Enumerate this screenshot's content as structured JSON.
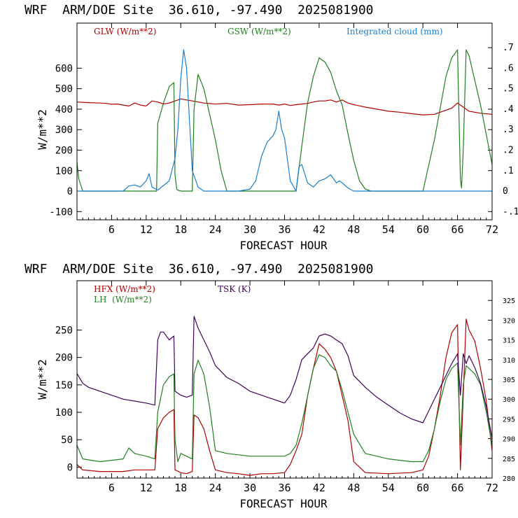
{
  "panels": [
    {
      "title": "WRF  ARM/DOE Site  36.610, -97.490  2025081900",
      "xlabel": "FORECAST HOUR",
      "ylabel": "W/m**2",
      "legend": [
        {
          "label": "GLW (W/m**2)",
          "color": "#b00000"
        },
        {
          "label": "GSW (W/m**2)",
          "color": "#208020"
        },
        {
          "label": "Integrated cloud (mm)",
          "color": "#1a7fd0"
        }
      ]
    },
    {
      "title": "WRF  ARM/DOE Site  36.610, -97.490  2025081900",
      "xlabel": "FORECAST HOUR",
      "ylabel": "W/m**2",
      "legend": [
        {
          "label": "HFX (W/m**2)",
          "color": "#b00000"
        },
        {
          "label": "LH  (W/m**2)",
          "color": "#208020"
        },
        {
          "label": "TSK (K)",
          "color": "#400060"
        }
      ]
    }
  ],
  "chart_data": [
    {
      "type": "line",
      "title": "WRF  ARM/DOE Site  36.610, -97.490  2025081900",
      "xlabel": "FORECAST HOUR",
      "ylabel": "W/m**2",
      "xlim": [
        0,
        72
      ],
      "ylim": [
        -140,
        820
      ],
      "y2lim": [
        -0.14,
        0.82
      ],
      "x_ticks": [
        6,
        12,
        18,
        24,
        30,
        36,
        42,
        48,
        54,
        60,
        66,
        72
      ],
      "y_ticks": [
        -100,
        0,
        100,
        200,
        300,
        400,
        500,
        600
      ],
      "y2_ticks": [
        -0.1,
        0,
        0.1,
        0.2,
        0.3,
        0.4,
        0.5,
        0.6,
        0.7
      ],
      "y2_tick_labels": [
        "-.1",
        "0",
        ".1",
        ".2",
        ".3",
        ".4",
        ".5",
        ".6",
        ".7"
      ],
      "legend_position": "top",
      "grid": false,
      "series": [
        {
          "name": "GLW (W/m**2)",
          "axis": "left",
          "color": "#b00000",
          "x": [
            0,
            2,
            4,
            5,
            6,
            7,
            8,
            9,
            10,
            11,
            12,
            13,
            14,
            15,
            16,
            17,
            18,
            19,
            20,
            21,
            22,
            24,
            26,
            28,
            30,
            32,
            34,
            35,
            36,
            37,
            38,
            39,
            40,
            41,
            42,
            43,
            44,
            45,
            46,
            47,
            48,
            50,
            52,
            54,
            56,
            58,
            60,
            62,
            64,
            65,
            66,
            67,
            68,
            70,
            72
          ],
          "y": [
            435,
            432,
            430,
            428,
            424,
            425,
            420,
            415,
            430,
            420,
            415,
            440,
            435,
            425,
            430,
            440,
            450,
            445,
            440,
            435,
            430,
            425,
            428,
            420,
            422,
            425,
            425,
            420,
            425,
            418,
            422,
            425,
            428,
            435,
            440,
            440,
            445,
            435,
            445,
            430,
            422,
            410,
            400,
            390,
            385,
            378,
            372,
            375,
            395,
            405,
            430,
            410,
            390,
            380,
            375
          ]
        },
        {
          "name": "GSW (W/m**2)",
          "axis": "left",
          "color": "#208020",
          "x": [
            0,
            0.3,
            1,
            13.8,
            14,
            15,
            16,
            16.8,
            17,
            17.3,
            17.5,
            18,
            19,
            20,
            20.3,
            21,
            22,
            24,
            25,
            26,
            38,
            39,
            40,
            41,
            42,
            43,
            44,
            45,
            46,
            47,
            48,
            49,
            50,
            51,
            60,
            62,
            64,
            65,
            66,
            66.5,
            66.7,
            67,
            67.5,
            68,
            70,
            72
          ],
          "y": [
            140,
            60,
            0,
            0,
            330,
            430,
            510,
            530,
            80,
            10,
            5,
            0,
            0,
            0,
            400,
            570,
            500,
            250,
            100,
            0,
            0,
            220,
            430,
            560,
            650,
            630,
            580,
            490,
            420,
            280,
            150,
            50,
            10,
            0,
            0,
            250,
            560,
            650,
            690,
            60,
            15,
            200,
            690,
            660,
            420,
            130
          ]
        },
        {
          "name": "Integrated cloud (mm)",
          "axis": "right",
          "color": "#1a7fd0",
          "x": [
            0,
            8,
            9,
            10,
            11,
            12,
            12.5,
            13,
            14,
            16,
            17,
            17.5,
            18,
            18.5,
            19,
            19.5,
            20,
            21,
            22,
            28,
            29,
            30,
            31,
            32,
            33,
            34,
            34.5,
            35,
            35.5,
            36,
            37,
            38,
            38.5,
            39,
            40,
            41,
            42,
            43,
            44,
            45,
            45.5,
            46,
            47,
            48,
            51,
            72
          ],
          "y": [
            0,
            0,
            0.025,
            0.03,
            0.02,
            0.05,
            0.085,
            0.02,
            0.005,
            0.05,
            0.16,
            0.3,
            0.55,
            0.69,
            0.6,
            0.35,
            0.1,
            0.02,
            0,
            0,
            0.005,
            0.01,
            0.05,
            0.17,
            0.24,
            0.27,
            0.3,
            0.39,
            0.3,
            0.26,
            0.05,
            0,
            0.12,
            0.13,
            0.04,
            0.02,
            0.05,
            0.06,
            0.08,
            0.04,
            0.05,
            0.04,
            0.015,
            0,
            0,
            0
          ]
        }
      ]
    },
    {
      "type": "line",
      "title": "WRF  ARM/DOE Site  36.610, -97.490  2025081900",
      "xlabel": "FORECAST HOUR",
      "ylabel": "W/m**2",
      "xlim": [
        0,
        72
      ],
      "ylim": [
        -20,
        340
      ],
      "y2lim": [
        280,
        330
      ],
      "x_ticks": [
        6,
        12,
        18,
        24,
        30,
        36,
        42,
        48,
        54,
        60,
        66,
        72
      ],
      "y_ticks": [
        0,
        50,
        100,
        150,
        200,
        250
      ],
      "y2_ticks": [
        280,
        285,
        290,
        295,
        300,
        305,
        310,
        315,
        320,
        325
      ],
      "legend_position": "top-left",
      "grid": false,
      "series": [
        {
          "name": "HFX (W/m**2)",
          "axis": "left",
          "color": "#b00000",
          "x": [
            0,
            1,
            4,
            6,
            8,
            10,
            12,
            13.5,
            14,
            15,
            16,
            16.8,
            17,
            18,
            19,
            20,
            20.3,
            21,
            22,
            23,
            24,
            26,
            28,
            30,
            32,
            34,
            36,
            37,
            38,
            39,
            40,
            41,
            42,
            43,
            44,
            45,
            46,
            47,
            48,
            50,
            54,
            58,
            60,
            61,
            62,
            63,
            64,
            65,
            66,
            66.5,
            67,
            67.5,
            68,
            69,
            70,
            71,
            72
          ],
          "y": [
            5,
            -5,
            -8,
            -8,
            -8,
            -5,
            -5,
            -5,
            70,
            90,
            100,
            105,
            -5,
            -10,
            -12,
            -8,
            95,
            90,
            70,
            30,
            -5,
            -10,
            -12,
            -15,
            -12,
            -12,
            -10,
            5,
            30,
            60,
            130,
            180,
            225,
            215,
            200,
            175,
            130,
            85,
            10,
            -10,
            -12,
            -10,
            -5,
            20,
            70,
            130,
            200,
            245,
            260,
            -5,
            130,
            270,
            250,
            230,
            180,
            120,
            30
          ]
        },
        {
          "name": "LH  (W/m**2)",
          "axis": "left",
          "color": "#208020",
          "x": [
            0,
            1,
            4,
            8,
            9,
            10,
            12,
            13.5,
            14,
            15,
            16,
            16.8,
            17,
            17.5,
            18,
            19,
            20,
            20.3,
            21,
            22,
            23,
            24,
            26,
            30,
            34,
            36,
            37,
            38,
            39,
            40,
            41,
            42,
            43,
            44,
            45,
            46,
            47,
            48,
            50,
            54,
            58,
            60,
            61,
            62,
            63,
            64,
            65,
            66,
            66.5,
            67,
            67.5,
            68,
            69,
            70,
            71,
            72
          ],
          "y": [
            40,
            15,
            10,
            15,
            35,
            25,
            20,
            15,
            100,
            150,
            165,
            170,
            50,
            10,
            25,
            20,
            15,
            170,
            195,
            170,
            110,
            30,
            25,
            20,
            20,
            20,
            25,
            40,
            80,
            130,
            180,
            205,
            200,
            185,
            175,
            140,
            100,
            60,
            25,
            15,
            10,
            10,
            30,
            70,
            120,
            160,
            180,
            190,
            40,
            150,
            185,
            180,
            170,
            150,
            100,
            40
          ]
        },
        {
          "name": "TSK (K)",
          "axis": "right",
          "color": "#400060",
          "x": [
            0,
            1,
            2,
            4,
            6,
            8,
            10,
            12,
            13.5,
            14,
            14.5,
            15,
            16,
            16.8,
            17,
            18,
            19,
            20,
            20.3,
            21,
            22,
            23,
            24,
            26,
            28,
            30,
            32,
            34,
            35,
            36,
            37,
            38,
            39,
            40,
            41,
            42,
            43,
            44,
            45,
            46,
            47,
            48,
            50,
            52,
            54,
            56,
            58,
            60,
            61,
            62,
            63,
            64,
            65,
            66,
            66.5,
            67,
            67.5,
            68,
            69,
            70,
            71,
            72
          ],
          "y": [
            306.5,
            304,
            303,
            302,
            301,
            300,
            299.5,
            299,
            298.5,
            315,
            317,
            317,
            315,
            316,
            302,
            301,
            300.5,
            301,
            321,
            318,
            315,
            312,
            308.5,
            305.5,
            304,
            302,
            301,
            300,
            299.5,
            299,
            301,
            305,
            310,
            311.5,
            313,
            316,
            316.5,
            316,
            315,
            314,
            311,
            306,
            303,
            300.5,
            298.5,
            296.5,
            295,
            294,
            297,
            300,
            303,
            306,
            309,
            311.5,
            301,
            311.5,
            309,
            311,
            308,
            304,
            298,
            290
          ]
        }
      ]
    }
  ]
}
